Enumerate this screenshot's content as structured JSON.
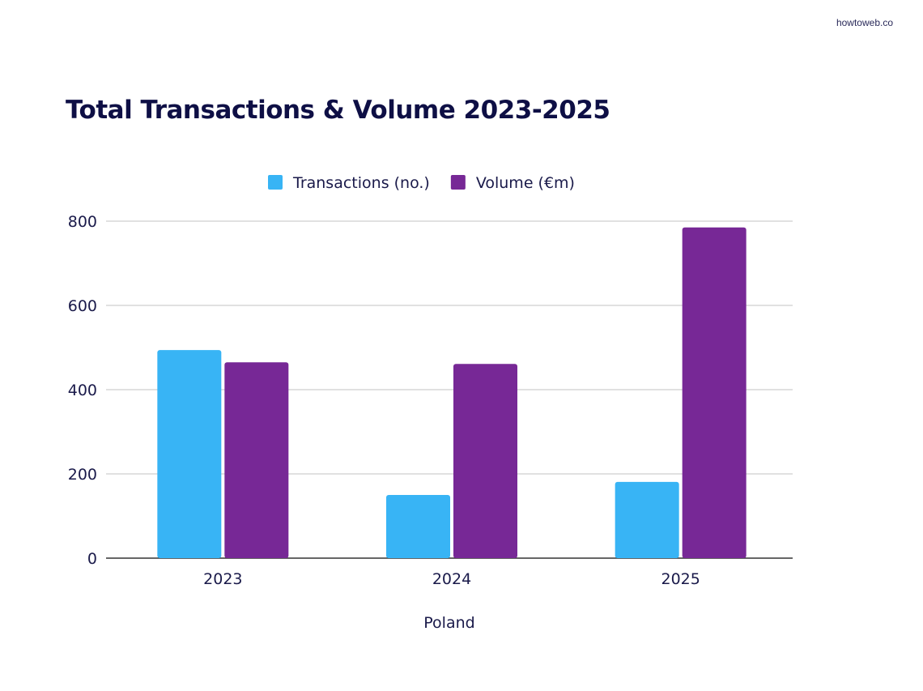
{
  "brand": "howtoweb.co",
  "chart_data": {
    "type": "bar",
    "title": "Total Transactions & Volume 2023-2025",
    "xlabel": "Poland",
    "ylabel": "",
    "categories": [
      "2023",
      "2024",
      "2025"
    ],
    "series": [
      {
        "name": "Transactions (no.)",
        "color": "#38b4f5",
        "values": [
          494,
          150,
          181
        ]
      },
      {
        "name": "Volume (€m)",
        "color": "#772896",
        "values": [
          465,
          461,
          785
        ]
      }
    ],
    "ylim": [
      0,
      800
    ],
    "yticks": [
      0,
      200,
      400,
      600,
      800
    ],
    "grid": true,
    "legend": "top-center"
  }
}
